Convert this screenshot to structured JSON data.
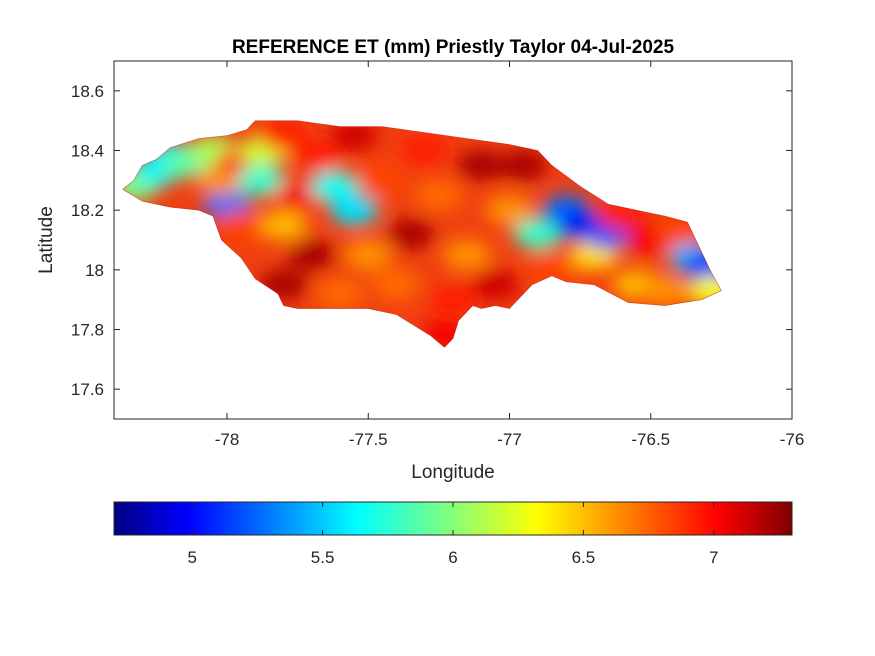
{
  "chart_data": {
    "type": "heatmap",
    "title": "REFERENCE ET (mm) Priestly Taylor 04-Jul-2025",
    "xlabel": "Longitude",
    "ylabel": "Latitude",
    "xlim": [
      -78.4,
      -76
    ],
    "ylim": [
      17.5,
      18.7
    ],
    "x_ticks": [
      -78,
      -77.5,
      -77,
      -76.5,
      -76
    ],
    "y_ticks": [
      17.6,
      17.8,
      18,
      18.2,
      18.4,
      18.6
    ],
    "x_tick_labels": [
      "-78",
      "-77.5",
      "-77",
      "-76.5",
      "-76"
    ],
    "y_tick_labels": [
      "17.6",
      "17.8",
      "18",
      "18.2",
      "18.4",
      "18.6"
    ],
    "colormap": "jet",
    "colorbar": {
      "orientation": "horizontal",
      "range": [
        4.7,
        7.3
      ],
      "ticks": [
        5,
        5.5,
        6,
        6.5,
        7
      ],
      "tick_labels": [
        "5",
        "5.5",
        "6",
        "6.5",
        "7"
      ]
    },
    "region_outline": [
      [
        -78.37,
        18.27
      ],
      [
        -78.33,
        18.3
      ],
      [
        -78.3,
        18.35
      ],
      [
        -78.25,
        18.37
      ],
      [
        -78.2,
        18.41
      ],
      [
        -78.1,
        18.44
      ],
      [
        -78.0,
        18.45
      ],
      [
        -77.93,
        18.47
      ],
      [
        -77.9,
        18.5
      ],
      [
        -77.75,
        18.5
      ],
      [
        -77.6,
        18.48
      ],
      [
        -77.45,
        18.48
      ],
      [
        -77.3,
        18.46
      ],
      [
        -77.15,
        18.44
      ],
      [
        -77.0,
        18.42
      ],
      [
        -76.9,
        18.4
      ],
      [
        -76.85,
        18.35
      ],
      [
        -76.75,
        18.28
      ],
      [
        -76.65,
        18.22
      ],
      [
        -76.55,
        18.2
      ],
      [
        -76.45,
        18.18
      ],
      [
        -76.37,
        18.16
      ],
      [
        -76.32,
        18.06
      ],
      [
        -76.29,
        18.0
      ],
      [
        -76.25,
        17.93
      ],
      [
        -76.32,
        17.9
      ],
      [
        -76.45,
        17.88
      ],
      [
        -76.58,
        17.89
      ],
      [
        -76.7,
        17.95
      ],
      [
        -76.8,
        17.96
      ],
      [
        -76.85,
        17.98
      ],
      [
        -76.92,
        17.95
      ],
      [
        -77.0,
        17.87
      ],
      [
        -77.05,
        17.88
      ],
      [
        -77.1,
        17.87
      ],
      [
        -77.13,
        17.88
      ],
      [
        -77.18,
        17.83
      ],
      [
        -77.2,
        17.77
      ],
      [
        -77.23,
        17.74
      ],
      [
        -77.28,
        17.78
      ],
      [
        -77.4,
        17.85
      ],
      [
        -77.5,
        17.87
      ],
      [
        -77.6,
        17.87
      ],
      [
        -77.75,
        17.87
      ],
      [
        -77.8,
        17.88
      ],
      [
        -77.82,
        17.92
      ],
      [
        -77.9,
        17.97
      ],
      [
        -77.95,
        18.04
      ],
      [
        -78.02,
        18.1
      ],
      [
        -78.05,
        18.18
      ],
      [
        -78.1,
        18.2
      ],
      [
        -78.2,
        18.21
      ],
      [
        -78.3,
        18.23
      ]
    ],
    "cells": [
      {
        "x": -78.33,
        "y": 18.28,
        "v": 6.0
      },
      {
        "x": -78.25,
        "y": 18.33,
        "v": 5.7
      },
      {
        "x": -78.2,
        "y": 18.38,
        "v": 5.6
      },
      {
        "x": -78.15,
        "y": 18.36,
        "v": 5.9
      },
      {
        "x": -78.05,
        "y": 18.4,
        "v": 6.1
      },
      {
        "x": -78.0,
        "y": 18.22,
        "v": 5.3
      },
      {
        "x": -78.02,
        "y": 18.3,
        "v": 6.6
      },
      {
        "x": -77.95,
        "y": 18.36,
        "v": 6.9
      },
      {
        "x": -77.95,
        "y": 18.15,
        "v": 6.8
      },
      {
        "x": -77.88,
        "y": 18.3,
        "v": 5.8
      },
      {
        "x": -77.87,
        "y": 18.4,
        "v": 6.2
      },
      {
        "x": -77.8,
        "y": 18.15,
        "v": 6.5
      },
      {
        "x": -77.8,
        "y": 18.45,
        "v": 6.9
      },
      {
        "x": -77.75,
        "y": 18.25,
        "v": 7.0
      },
      {
        "x": -77.7,
        "y": 18.05,
        "v": 7.2
      },
      {
        "x": -77.68,
        "y": 18.38,
        "v": 6.9
      },
      {
        "x": -77.62,
        "y": 18.28,
        "v": 5.7
      },
      {
        "x": -77.55,
        "y": 18.2,
        "v": 5.6
      },
      {
        "x": -77.55,
        "y": 18.45,
        "v": 7.1
      },
      {
        "x": -77.5,
        "y": 18.05,
        "v": 6.6
      },
      {
        "x": -77.45,
        "y": 18.3,
        "v": 6.8
      },
      {
        "x": -77.4,
        "y": 17.95,
        "v": 6.7
      },
      {
        "x": -77.35,
        "y": 18.12,
        "v": 7.2
      },
      {
        "x": -77.3,
        "y": 18.4,
        "v": 6.9
      },
      {
        "x": -77.25,
        "y": 18.25,
        "v": 6.7
      },
      {
        "x": -77.2,
        "y": 17.9,
        "v": 6.9
      },
      {
        "x": -77.15,
        "y": 18.05,
        "v": 6.6
      },
      {
        "x": -77.1,
        "y": 18.35,
        "v": 7.2
      },
      {
        "x": -77.05,
        "y": 17.95,
        "v": 7.1
      },
      {
        "x": -77.0,
        "y": 18.2,
        "v": 6.6
      },
      {
        "x": -76.95,
        "y": 18.35,
        "v": 7.2
      },
      {
        "x": -76.9,
        "y": 18.12,
        "v": 5.8
      },
      {
        "x": -76.85,
        "y": 18.0,
        "v": 6.8
      },
      {
        "x": -76.8,
        "y": 18.2,
        "v": 5.3
      },
      {
        "x": -76.75,
        "y": 18.15,
        "v": 5.0
      },
      {
        "x": -76.7,
        "y": 18.05,
        "v": 6.4
      },
      {
        "x": -76.65,
        "y": 18.12,
        "v": 5.2
      },
      {
        "x": -76.6,
        "y": 18.18,
        "v": 6.9
      },
      {
        "x": -76.55,
        "y": 17.95,
        "v": 6.5
      },
      {
        "x": -76.5,
        "y": 18.1,
        "v": 7.0
      },
      {
        "x": -76.45,
        "y": 17.93,
        "v": 6.6
      },
      {
        "x": -76.4,
        "y": 18.12,
        "v": 6.8
      },
      {
        "x": -76.35,
        "y": 18.04,
        "v": 5.5
      },
      {
        "x": -76.3,
        "y": 18.01,
        "v": 5.1
      },
      {
        "x": -76.28,
        "y": 17.93,
        "v": 6.3
      },
      {
        "x": -77.6,
        "y": 17.92,
        "v": 6.7
      },
      {
        "x": -77.8,
        "y": 17.95,
        "v": 7.2
      },
      {
        "x": -77.23,
        "y": 17.78,
        "v": 7.0
      }
    ]
  }
}
